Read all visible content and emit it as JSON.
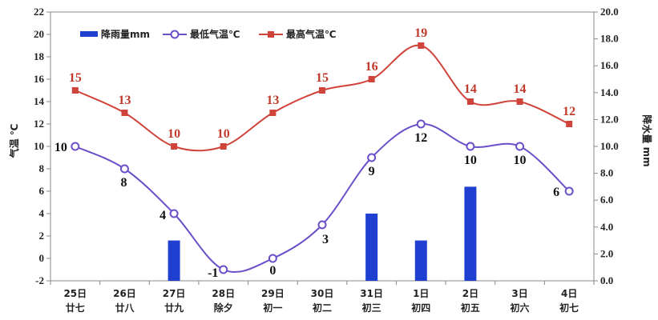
{
  "chart_data": {
    "type": "bar+line",
    "categories": [
      "25日",
      "26日",
      "27日",
      "28日",
      "29日",
      "30日",
      "31日",
      "1日",
      "2日",
      "3日",
      "4日"
    ],
    "lunar": [
      "廿七",
      "廿八",
      "廿九",
      "除夕",
      "初一",
      "初二",
      "初三",
      "初四",
      "初五",
      "初六",
      "初七"
    ],
    "series": [
      {
        "name": "降雨量mm",
        "type": "bar",
        "axis": "right",
        "color": "#1f3fd1",
        "values": [
          0,
          0,
          3.0,
          0,
          0,
          0,
          5.0,
          3.0,
          7.0,
          0,
          0
        ]
      },
      {
        "name": "最低气温℃",
        "type": "line",
        "axis": "left",
        "color": "#6a4fc9",
        "values": [
          10,
          8,
          4,
          -1,
          0,
          3,
          9,
          12,
          10,
          10,
          6
        ]
      },
      {
        "name": "最高气温℃",
        "type": "line",
        "axis": "left",
        "color": "#d0433a",
        "values": [
          15,
          13,
          10,
          10,
          13,
          15,
          16,
          19,
          14,
          14,
          12
        ]
      }
    ],
    "ylabel_left": "气温 ℃",
    "ylabel_right": "降水量 mm",
    "ylim_left": [
      -2,
      22
    ],
    "yticks_left": [
      -2,
      0,
      2,
      4,
      6,
      8,
      10,
      12,
      14,
      16,
      18,
      20,
      22
    ],
    "ylim_right": [
      0,
      20
    ],
    "yticks_right": [
      "0.0",
      "2.0",
      "4.0",
      "6.0",
      "8.0",
      "10.0",
      "12.0",
      "14.0",
      "16.0",
      "18.0",
      "20.0"
    ],
    "grid": false,
    "legend": "top-left"
  }
}
